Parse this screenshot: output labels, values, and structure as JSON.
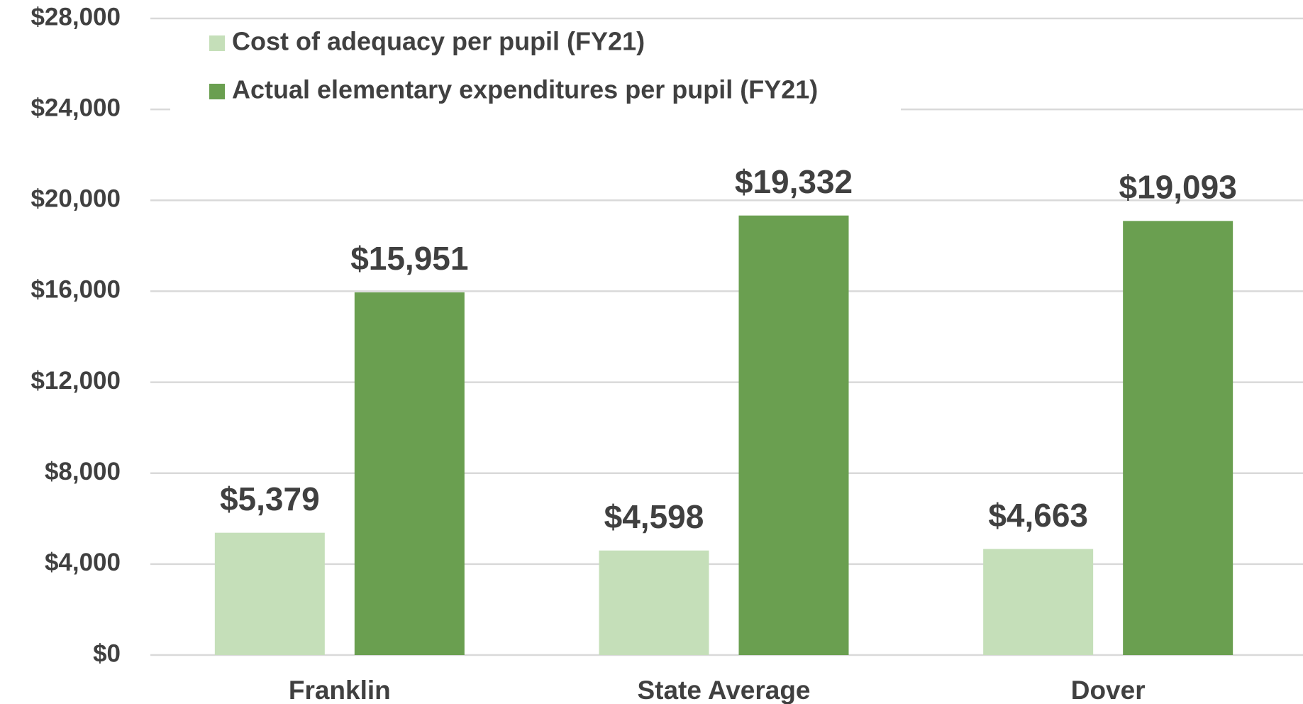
{
  "chart_data": {
    "type": "bar",
    "categories": [
      "Franklin",
      "State Average",
      "Dover"
    ],
    "series": [
      {
        "name": "Cost of adequacy per pupil (FY21)",
        "color": "#c5dfb9",
        "values": [
          5379,
          4598,
          4663
        ],
        "value_labels": [
          "$5,379",
          "$4,598",
          "$4,663"
        ]
      },
      {
        "name": "Actual elementary expenditures per pupil (FY21)",
        "color": "#6a9f50",
        "values": [
          15951,
          19332,
          19093
        ],
        "value_labels": [
          "$15,951",
          "$19,332",
          "$19,093"
        ]
      }
    ],
    "ylim": [
      0,
      28000
    ],
    "yticks": [
      {
        "value": 0,
        "label": "$0"
      },
      {
        "value": 4000,
        "label": "$4,000"
      },
      {
        "value": 8000,
        "label": "$8,000"
      },
      {
        "value": 12000,
        "label": "$12,000"
      },
      {
        "value": 16000,
        "label": "$16,000"
      },
      {
        "value": 20000,
        "label": "$20,000"
      },
      {
        "value": 24000,
        "label": "$24,000"
      },
      {
        "value": 28000,
        "label": "$28,000"
      }
    ],
    "grid": true,
    "legend": "upper left"
  }
}
